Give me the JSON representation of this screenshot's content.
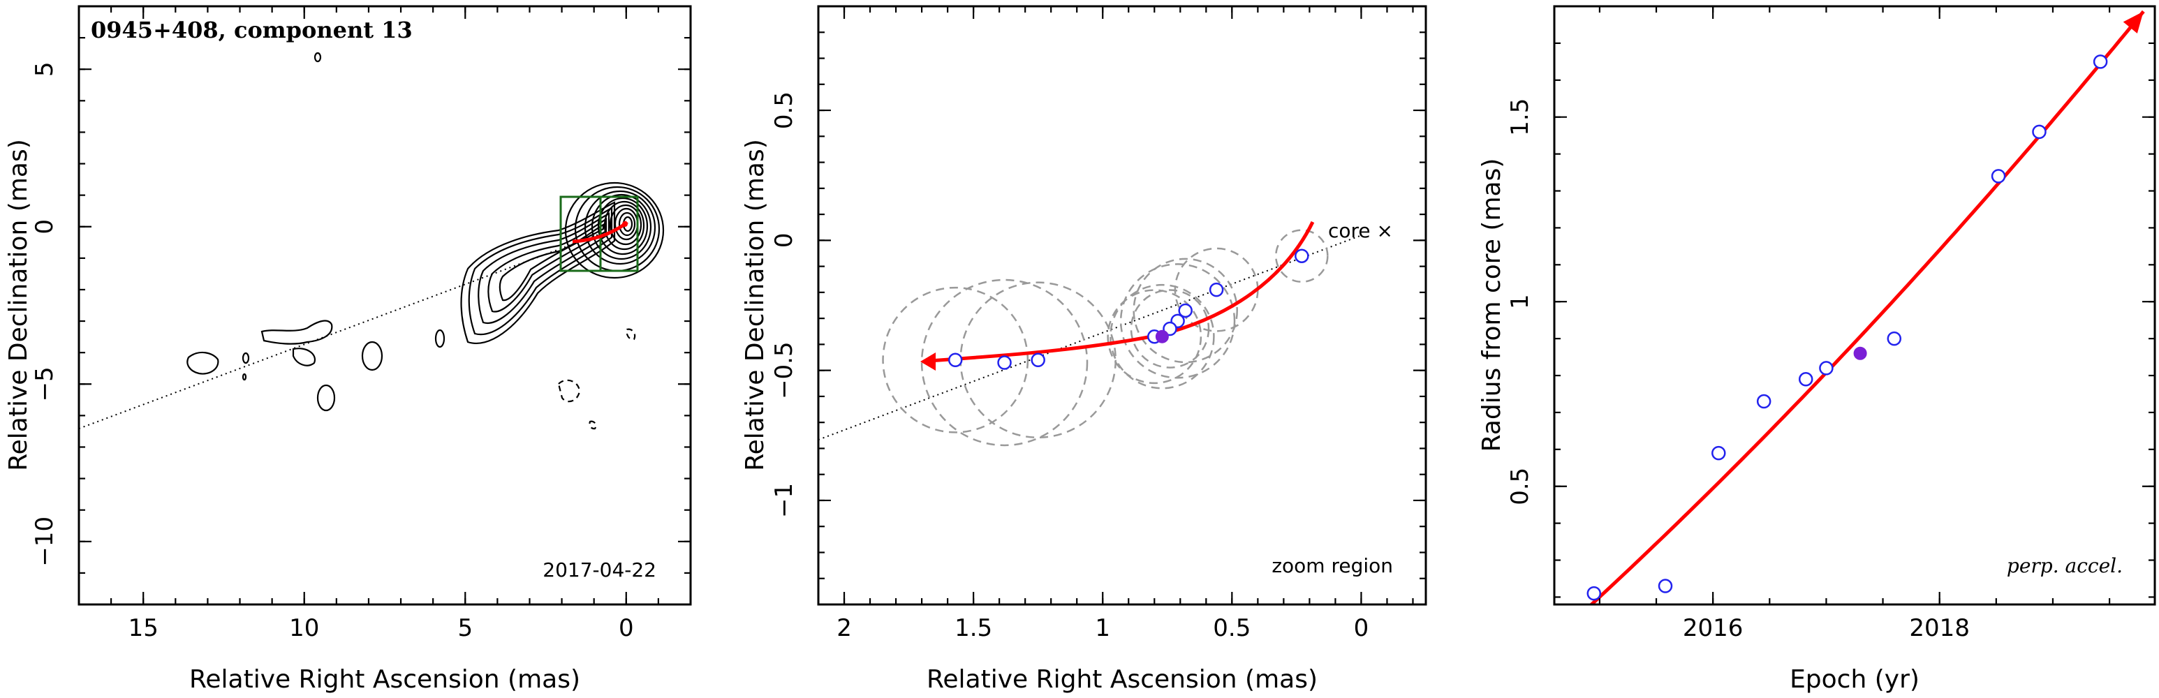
{
  "colors": {
    "trajectory": "#ff0000",
    "open_point_edge": "#2222ee",
    "filled_point": "#7a1fd6",
    "error_circle": "#999999",
    "zoom_box": "#1a6b1a",
    "contour": "#000000"
  },
  "chart_data": [
    {
      "type": "scatter",
      "panel": "left",
      "title": "0945+408, component 13",
      "epoch_label": "2017-04-22",
      "xlabel": "Relative Right Ascension (mas)",
      "ylabel": "Relative Declination (mas)",
      "xlim": [
        17,
        -2
      ],
      "ylim": [
        -12,
        7
      ],
      "xticks": [
        "15",
        "10",
        "5",
        "0"
      ],
      "yticks": [
        "5",
        "0",
        "−5",
        "−10"
      ],
      "elements": [
        "contour map",
        "dotted extrapolation line",
        "zoom region box"
      ],
      "legend": "none",
      "grid": "off"
    },
    {
      "type": "scatter",
      "panel": "middle",
      "annotation": "zoom region",
      "core_label": "core ×",
      "xlabel": "Relative Right Ascension (mas)",
      "ylabel": "Relative Declination (mas)",
      "xlim": [
        2.1,
        -0.25
      ],
      "ylim": [
        -1.4,
        0.9
      ],
      "xticks": [
        "2",
        "1.5",
        "1",
        "0.5",
        "0"
      ],
      "yticks": [
        "0.5",
        "0",
        "−0.5",
        "−1"
      ],
      "points_open": [
        {
          "x": 0.23,
          "y": -0.06
        },
        {
          "x": 0.56,
          "y": -0.19
        },
        {
          "x": 0.68,
          "y": -0.27
        },
        {
          "x": 0.71,
          "y": -0.31
        },
        {
          "x": 0.74,
          "y": -0.34
        },
        {
          "x": 0.8,
          "y": -0.37
        },
        {
          "x": 1.25,
          "y": -0.46
        },
        {
          "x": 1.38,
          "y": -0.47
        },
        {
          "x": 1.57,
          "y": -0.46
        }
      ],
      "point_filled": {
        "x": 0.77,
        "y": -0.37
      },
      "error_circle_radii": [
        0.1,
        0.16,
        0.2,
        0.22,
        0.15,
        0.18,
        0.3,
        0.32,
        0.28,
        0.2
      ],
      "legend": "none",
      "grid": "off"
    },
    {
      "type": "scatter",
      "panel": "right",
      "annotation": "perp. accel.",
      "xlabel": "Epoch (yr)",
      "ylabel": "Radius from core (mas)",
      "xlim": [
        2014.6,
        2019.9
      ],
      "ylim": [
        0.18,
        1.8
      ],
      "xticks": [
        "2016",
        "2018"
      ],
      "yticks": [
        "0.5",
        "1",
        "1.5"
      ],
      "points_open": [
        {
          "x": 2014.95,
          "y": 0.21
        },
        {
          "x": 2015.58,
          "y": 0.23
        },
        {
          "x": 2016.05,
          "y": 0.59
        },
        {
          "x": 2016.45,
          "y": 0.73
        },
        {
          "x": 2016.82,
          "y": 0.79
        },
        {
          "x": 2017.0,
          "y": 0.82
        },
        {
          "x": 2017.6,
          "y": 0.9
        },
        {
          "x": 2018.52,
          "y": 1.34
        },
        {
          "x": 2018.88,
          "y": 1.46
        },
        {
          "x": 2019.42,
          "y": 1.65
        }
      ],
      "point_filled": {
        "x": 2017.3,
        "y": 0.86
      },
      "fit": "quadratic",
      "legend": "none",
      "grid": "off"
    }
  ]
}
